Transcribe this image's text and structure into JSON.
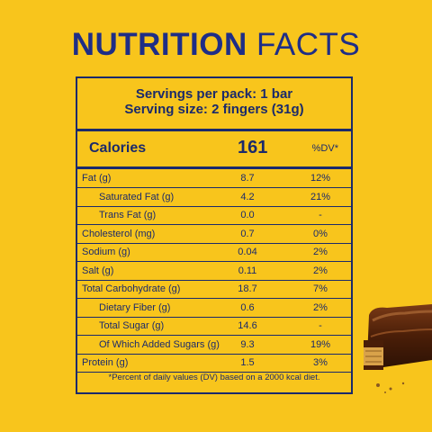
{
  "title": {
    "bold": "NUTRITION",
    "light": "FACTS"
  },
  "serving": {
    "line1": "Servings per pack: 1 bar",
    "line2": "Serving size: 2 fingers (31g)"
  },
  "calories": {
    "label": "Calories",
    "value": "161",
    "dv_header": "%DV*"
  },
  "rows": [
    {
      "label": "Fat (g)",
      "amount": "8.7",
      "dv": "12%",
      "indent": false
    },
    {
      "label": "Saturated Fat (g)",
      "amount": "4.2",
      "dv": "21%",
      "indent": true
    },
    {
      "label": "Trans Fat (g)",
      "amount": "0.0",
      "dv": "-",
      "indent": true
    },
    {
      "label": "Cholesterol (mg)",
      "amount": "0.7",
      "dv": "0%",
      "indent": false
    },
    {
      "label": "Sodium (g)",
      "amount": "0.04",
      "dv": "2%",
      "indent": false
    },
    {
      "label": "Salt (g)",
      "amount": "0.11",
      "dv": "2%",
      "indent": false
    },
    {
      "label": "Total Carbohydrate (g)",
      "amount": "18.7",
      "dv": "7%",
      "indent": false
    },
    {
      "label": "Dietary Fiber (g)",
      "amount": "0.6",
      "dv": "2%",
      "indent": true
    },
    {
      "label": "Total Sugar (g)",
      "amount": "14.6",
      "dv": "-",
      "indent": true
    },
    {
      "label": "Of Which Added Sugars (g)",
      "amount": "9.3",
      "dv": "19%",
      "indent": true
    },
    {
      "label": "Protein (g)",
      "amount": "1.5",
      "dv": "3%",
      "indent": false
    }
  ],
  "footnote": "*Percent of daily values (DV) based on a 2000 kcal diet.",
  "colors": {
    "background": "#F8C51C",
    "ink": "#1B2A6B",
    "title": "#1F2E86"
  }
}
